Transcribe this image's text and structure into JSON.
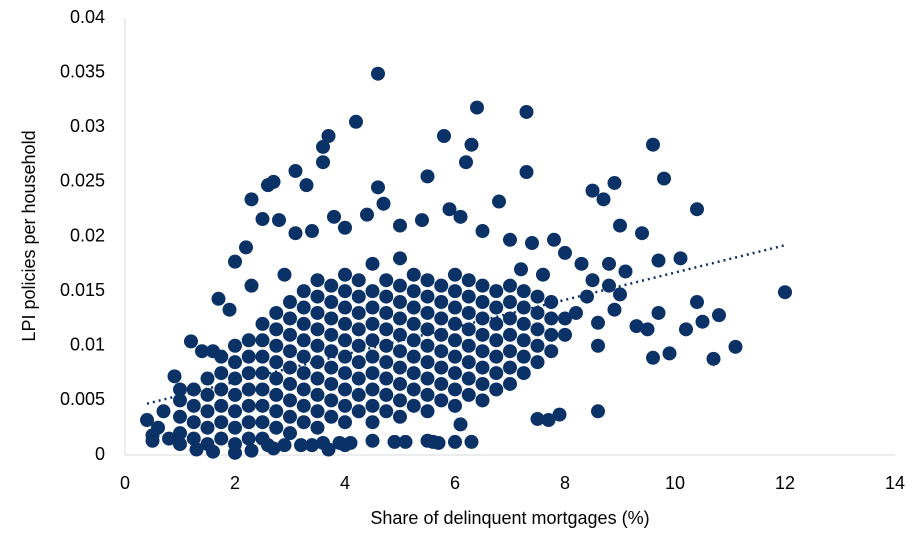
{
  "chart_data": {
    "type": "scatter",
    "x_label": "Share of delinquent mortgages (%)",
    "y_label": "LPI policies per household",
    "color": "#0b3266",
    "xlim": [
      0,
      14
    ],
    "xticks": [
      0,
      2,
      4,
      6,
      8,
      10,
      12,
      14
    ],
    "ylim": [
      0,
      0.04
    ],
    "yticks": [
      0,
      0.005,
      0.01,
      0.015,
      0.02,
      0.025,
      0.03,
      0.035,
      0.04
    ],
    "grid": false,
    "x": [
      4.6,
      6.4,
      7.3,
      4.2,
      3.7,
      5.8,
      3.6,
      6.3,
      9.6,
      3.1,
      3.6,
      6.2,
      7.3,
      9.8,
      2.7,
      2.6,
      3.3,
      4.6,
      5.5,
      6.8,
      2.3,
      8.5,
      8.9,
      10.4,
      9.0,
      9.4,
      8.7,
      9.7,
      10.1,
      12,
      11.1,
      10.7,
      10.4,
      10.8,
      9.9,
      9.5,
      9.6,
      10.2,
      10.5,
      9.7,
      9.3,
      8.6,
      8.9,
      8.6,
      8.6,
      7.9,
      7.5,
      7.7,
      6.1,
      5.7,
      5.6,
      6.0,
      6.3,
      5.5,
      4.5,
      4.9,
      5.1,
      4.1,
      3.9,
      3.6,
      3.4,
      3.2,
      2.9,
      2.6,
      2.7,
      3.7,
      4.0,
      0.4,
      0.5,
      0.5,
      0.9,
      1.2,
      1.6,
      1.7,
      2.0,
      2.2,
      2.5,
      2.8,
      3.1,
      3.4,
      3.8,
      4.0,
      4.4,
      4.7,
      5.0,
      5.4,
      5.9,
      6.1,
      6.5,
      7.0,
      7.4,
      7.8,
      8.0,
      8.3,
      8.8,
      9.1,
      8.5,
      8.4,
      8.2,
      8.8,
      9.0,
      7.6,
      7.2,
      2.9,
      2.3,
      1.9,
      1.4,
      1.0,
      0.7,
      0.6,
      0.8,
      1.0,
      1.3,
      1.6,
      2.0,
      2.3,
      1.0,
      1.0,
      1.0,
      1.5,
      1.5,
      1.5,
      1.5,
      1.5,
      2.0,
      2.0,
      2.0,
      2.0,
      2.0,
      2.0,
      2.0,
      2.5,
      2.5,
      2.5,
      2.5,
      2.5,
      2.5,
      2.5,
      2.5,
      3.0,
      3.0,
      3.0,
      3.0,
      3.0,
      3.0,
      3.0,
      3.0,
      3.0,
      3.5,
      3.5,
      3.5,
      3.5,
      3.5,
      3.5,
      3.5,
      3.5,
      3.5,
      3.5,
      4.0,
      4.0,
      4.0,
      4.0,
      4.0,
      4.0,
      4.0,
      4.0,
      4.0,
      4.0,
      4.5,
      4.5,
      4.5,
      4.5,
      4.5,
      4.5,
      4.5,
      4.5,
      4.5,
      4.5,
      5.0,
      5.0,
      5.0,
      5.0,
      5.0,
      5.0,
      5.0,
      5.0,
      5.0,
      5.0,
      5.5,
      5.5,
      5.5,
      5.5,
      5.5,
      5.5,
      5.5,
      5.5,
      5.5,
      6.0,
      6.0,
      6.0,
      6.0,
      6.0,
      6.0,
      6.0,
      6.0,
      6.0,
      6.5,
      6.5,
      6.5,
      6.5,
      6.5,
      6.5,
      6.5,
      6.5,
      7.0,
      7.0,
      7.0,
      7.0,
      7.0,
      7.0,
      7.0,
      7.5,
      7.5,
      7.5,
      7.5,
      7.5,
      8.0,
      8.0,
      1.25,
      1.25,
      1.25,
      1.25,
      1.75,
      1.75,
      1.75,
      1.75,
      1.75,
      1.75,
      2.25,
      2.25,
      2.25,
      2.25,
      2.25,
      2.25,
      2.25,
      2.75,
      2.75,
      2.75,
      2.75,
      2.75,
      2.75,
      2.75,
      2.75,
      3.25,
      3.25,
      3.25,
      3.25,
      3.25,
      3.25,
      3.25,
      3.25,
      3.25,
      3.75,
      3.75,
      3.75,
      3.75,
      3.75,
      3.75,
      3.75,
      3.75,
      3.75,
      4.25,
      4.25,
      4.25,
      4.25,
      4.25,
      4.25,
      4.25,
      4.25,
      4.25,
      4.75,
      4.75,
      4.75,
      4.75,
      4.75,
      4.75,
      4.75,
      4.75,
      4.75,
      5.25,
      5.25,
      5.25,
      5.25,
      5.25,
      5.25,
      5.25,
      5.25,
      5.25,
      5.75,
      5.75,
      5.75,
      5.75,
      5.75,
      5.75,
      5.75,
      5.75,
      6.25,
      6.25,
      6.25,
      6.25,
      6.25,
      6.25,
      6.25,
      6.25,
      6.75,
      6.75,
      6.75,
      6.75,
      6.75,
      6.75,
      6.75,
      7.25,
      7.25,
      7.25,
      7.25,
      7.25,
      7.25,
      7.75,
      7.75,
      7.75,
      7.75
    ],
    "values": [
      0.0349,
      0.0318,
      0.0314,
      0.0305,
      0.0292,
      0.0292,
      0.0282,
      0.0284,
      0.0284,
      0.026,
      0.0268,
      0.0268,
      0.0259,
      0.0253,
      0.025,
      0.0247,
      0.0247,
      0.0245,
      0.0255,
      0.0232,
      0.0234,
      0.0242,
      0.0249,
      0.0225,
      0.021,
      0.0203,
      0.0234,
      0.0178,
      0.018,
      0.0149,
      0.0099,
      0.0088,
      0.014,
      0.0128,
      0.0093,
      0.0115,
      0.0089,
      0.0115,
      0.0122,
      0.013,
      0.0118,
      0.0121,
      0.0133,
      0.01,
      0.004,
      0.0037,
      0.0033,
      0.0032,
      0.0028,
      0.0011,
      0.0012,
      0.0012,
      0.0012,
      0.0013,
      0.0013,
      0.0012,
      0.0012,
      0.0011,
      0.0011,
      0.0011,
      0.0009,
      0.0009,
      0.0009,
      0.0009,
      0.0006,
      0.0005,
      0.0009,
      0.0032,
      0.0018,
      0.0013,
      0.0072,
      0.0104,
      0.0095,
      0.0143,
      0.0177,
      0.019,
      0.0216,
      0.0215,
      0.0203,
      0.0205,
      0.0218,
      0.0208,
      0.022,
      0.023,
      0.021,
      0.0215,
      0.0225,
      0.0218,
      0.0205,
      0.0197,
      0.0194,
      0.0197,
      0.0185,
      0.0175,
      0.0175,
      0.0168,
      0.016,
      0.0145,
      0.013,
      0.0155,
      0.0147,
      0.0165,
      0.017,
      0.0165,
      0.0155,
      0.0133,
      0.0095,
      0.006,
      0.004,
      0.0025,
      0.0015,
      0.001,
      0.0005,
      0.0003,
      0.0002,
      0.0004,
      0.002,
      0.0035,
      0.005,
      0.001,
      0.0025,
      0.004,
      0.0055,
      0.007,
      0.001,
      0.0025,
      0.004,
      0.0055,
      0.007,
      0.0085,
      0.01,
      0.0015,
      0.003,
      0.0045,
      0.006,
      0.0075,
      0.009,
      0.0105,
      0.012,
      0.002,
      0.0035,
      0.005,
      0.0065,
      0.008,
      0.0095,
      0.011,
      0.0125,
      0.014,
      0.0025,
      0.004,
      0.0055,
      0.007,
      0.0085,
      0.01,
      0.0115,
      0.013,
      0.0145,
      0.016,
      0.003,
      0.0045,
      0.006,
      0.0075,
      0.009,
      0.0105,
      0.012,
      0.0135,
      0.015,
      0.0165,
      0.003,
      0.0045,
      0.006,
      0.0075,
      0.009,
      0.0105,
      0.012,
      0.0135,
      0.015,
      0.0175,
      0.0035,
      0.005,
      0.0065,
      0.008,
      0.0095,
      0.011,
      0.0125,
      0.014,
      0.0155,
      0.018,
      0.004,
      0.0055,
      0.007,
      0.0085,
      0.01,
      0.0115,
      0.013,
      0.0145,
      0.016,
      0.0045,
      0.006,
      0.0075,
      0.009,
      0.0105,
      0.012,
      0.0135,
      0.015,
      0.0165,
      0.005,
      0.0065,
      0.008,
      0.0095,
      0.011,
      0.0125,
      0.014,
      0.0155,
      0.0065,
      0.008,
      0.0095,
      0.011,
      0.0125,
      0.014,
      0.0155,
      0.0085,
      0.01,
      0.0115,
      0.013,
      0.0145,
      0.011,
      0.0125,
      0.0015,
      0.003,
      0.0045,
      0.006,
      0.0015,
      0.003,
      0.0045,
      0.006,
      0.0075,
      0.009,
      0.0015,
      0.003,
      0.0045,
      0.006,
      0.0075,
      0.009,
      0.0105,
      0.0025,
      0.004,
      0.0055,
      0.007,
      0.0085,
      0.01,
      0.0115,
      0.013,
      0.003,
      0.0045,
      0.006,
      0.0075,
      0.009,
      0.0105,
      0.012,
      0.0135,
      0.015,
      0.0035,
      0.005,
      0.0065,
      0.008,
      0.0095,
      0.011,
      0.0125,
      0.014,
      0.0155,
      0.004,
      0.0055,
      0.007,
      0.0085,
      0.01,
      0.0115,
      0.013,
      0.0145,
      0.016,
      0.004,
      0.0055,
      0.007,
      0.0085,
      0.01,
      0.0115,
      0.013,
      0.0145,
      0.016,
      0.0045,
      0.006,
      0.0075,
      0.009,
      0.0105,
      0.012,
      0.0135,
      0.015,
      0.0165,
      0.005,
      0.0065,
      0.008,
      0.0095,
      0.011,
      0.0125,
      0.014,
      0.0155,
      0.0055,
      0.007,
      0.0085,
      0.01,
      0.0115,
      0.013,
      0.0145,
      0.016,
      0.006,
      0.0075,
      0.009,
      0.0105,
      0.012,
      0.0135,
      0.015,
      0.0075,
      0.009,
      0.0105,
      0.012,
      0.0135,
      0.015,
      0.0095,
      0.011,
      0.0125,
      0.014
    ],
    "trendline": {
      "x": [
        0.4,
        12
      ],
      "values": [
        0.0047,
        0.0192
      ]
    }
  }
}
